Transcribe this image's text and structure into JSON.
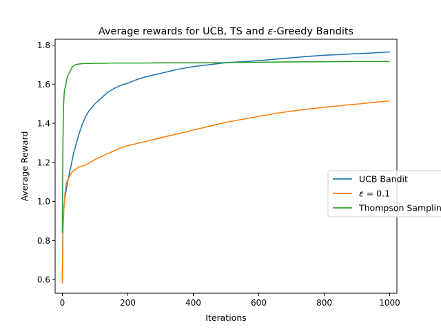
{
  "chart_data": {
    "type": "line",
    "title_prefix": "Average rewards for UCB, TS and ",
    "title_epsilon": "ε",
    "title_suffix": "-Greedy Bandits",
    "xlabel": "Iterations",
    "ylabel": "Average Reward",
    "xlim": [
      -22,
      1022
    ],
    "ylim": [
      0.53,
      1.83
    ],
    "xticks": [
      0,
      200,
      400,
      600,
      800,
      1000
    ],
    "yticks": [
      0.6,
      0.8,
      1.0,
      1.2,
      1.4,
      1.6,
      1.8
    ],
    "xtick_labels": [
      "0",
      "200",
      "400",
      "600",
      "800",
      "1000"
    ],
    "ytick_labels": [
      "0.6",
      "0.8",
      "1.0",
      "1.2",
      "1.4",
      "1.6",
      "1.8"
    ],
    "grid": false,
    "legend_position": "center-right",
    "series": [
      {
        "name": "UCB Bandit",
        "color": "#1f77b4",
        "x": [
          0,
          2,
          5,
          8,
          12,
          16,
          20,
          25,
          30,
          35,
          40,
          50,
          60,
          70,
          80,
          90,
          100,
          120,
          140,
          160,
          180,
          200,
          230,
          260,
          300,
          350,
          400,
          450,
          500,
          550,
          600,
          650,
          700,
          750,
          800,
          850,
          900,
          950,
          1000
        ],
        "y": [
          0.6,
          0.88,
          0.97,
          1.02,
          1.06,
          1.1,
          1.13,
          1.17,
          1.21,
          1.25,
          1.28,
          1.34,
          1.39,
          1.43,
          1.46,
          1.48,
          1.5,
          1.53,
          1.56,
          1.58,
          1.595,
          1.605,
          1.625,
          1.64,
          1.655,
          1.675,
          1.69,
          1.7,
          1.71,
          1.715,
          1.72,
          1.728,
          1.735,
          1.742,
          1.748,
          1.752,
          1.756,
          1.76,
          1.765
        ]
      },
      {
        "name": "ε = 0.1",
        "name_symbol": "ε",
        "name_rest": " = 0.1",
        "color": "#ff7f0e",
        "x": [
          0,
          2,
          5,
          8,
          12,
          16,
          20,
          25,
          30,
          40,
          50,
          60,
          70,
          80,
          100,
          120,
          140,
          160,
          180,
          200,
          250,
          300,
          350,
          400,
          450,
          500,
          550,
          600,
          650,
          700,
          750,
          800,
          850,
          900,
          950,
          1000
        ],
        "y": [
          0.58,
          0.85,
          0.97,
          1.04,
          1.09,
          1.11,
          1.12,
          1.14,
          1.15,
          1.165,
          1.175,
          1.18,
          1.185,
          1.195,
          1.215,
          1.23,
          1.245,
          1.26,
          1.275,
          1.285,
          1.305,
          1.325,
          1.345,
          1.365,
          1.385,
          1.405,
          1.42,
          1.435,
          1.45,
          1.462,
          1.472,
          1.482,
          1.49,
          1.498,
          1.506,
          1.515
        ]
      },
      {
        "name": "Thompson Sampling",
        "color": "#2ca02c",
        "x": [
          0,
          1,
          2,
          3,
          4,
          6,
          8,
          10,
          13,
          16,
          20,
          25,
          30,
          35,
          40,
          50,
          60,
          80,
          100,
          120,
          150,
          200,
          250,
          300,
          400,
          500,
          600,
          700,
          800,
          900,
          1000
        ],
        "y": [
          0.84,
          1.1,
          1.3,
          1.42,
          1.5,
          1.56,
          1.58,
          1.59,
          1.62,
          1.64,
          1.655,
          1.67,
          1.688,
          1.695,
          1.7,
          1.703,
          1.705,
          1.706,
          1.707,
          1.707,
          1.708,
          1.708,
          1.708,
          1.709,
          1.709,
          1.71,
          1.712,
          1.714,
          1.715,
          1.716,
          1.716
        ]
      }
    ]
  }
}
